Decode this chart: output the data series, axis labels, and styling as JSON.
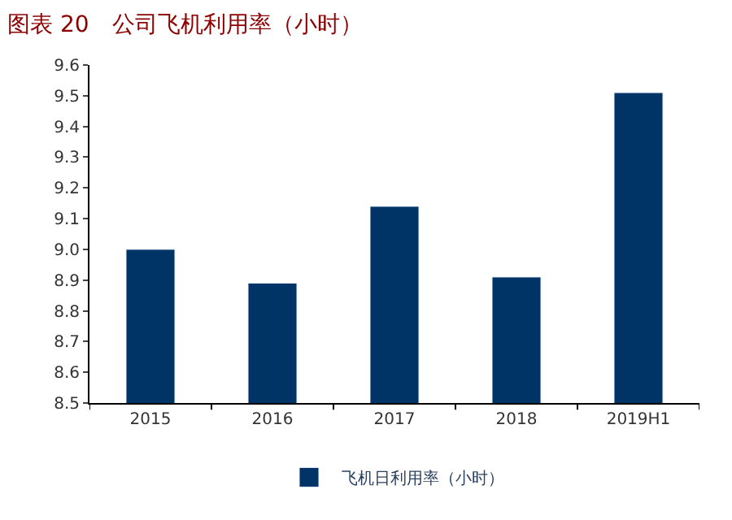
{
  "chart_data": {
    "type": "bar",
    "title": "图表 20　公司飞机利用率（小时）",
    "categories": [
      "2015",
      "2016",
      "2017",
      "2018",
      "2019H1"
    ],
    "series": [
      {
        "name": "飞机日利用率（小时）",
        "color": "#003366",
        "values": [
          9.0,
          8.89,
          9.14,
          8.91,
          9.51
        ]
      }
    ],
    "ylim": [
      8.5,
      9.6
    ],
    "yticks": [
      8.5,
      8.6,
      8.7,
      8.8,
      8.9,
      {
        "value": 9.0,
        "label": "9.0"
      },
      9.1,
      9.2,
      9.3,
      9.4,
      9.5,
      9.6
    ],
    "legend": "bottom"
  }
}
